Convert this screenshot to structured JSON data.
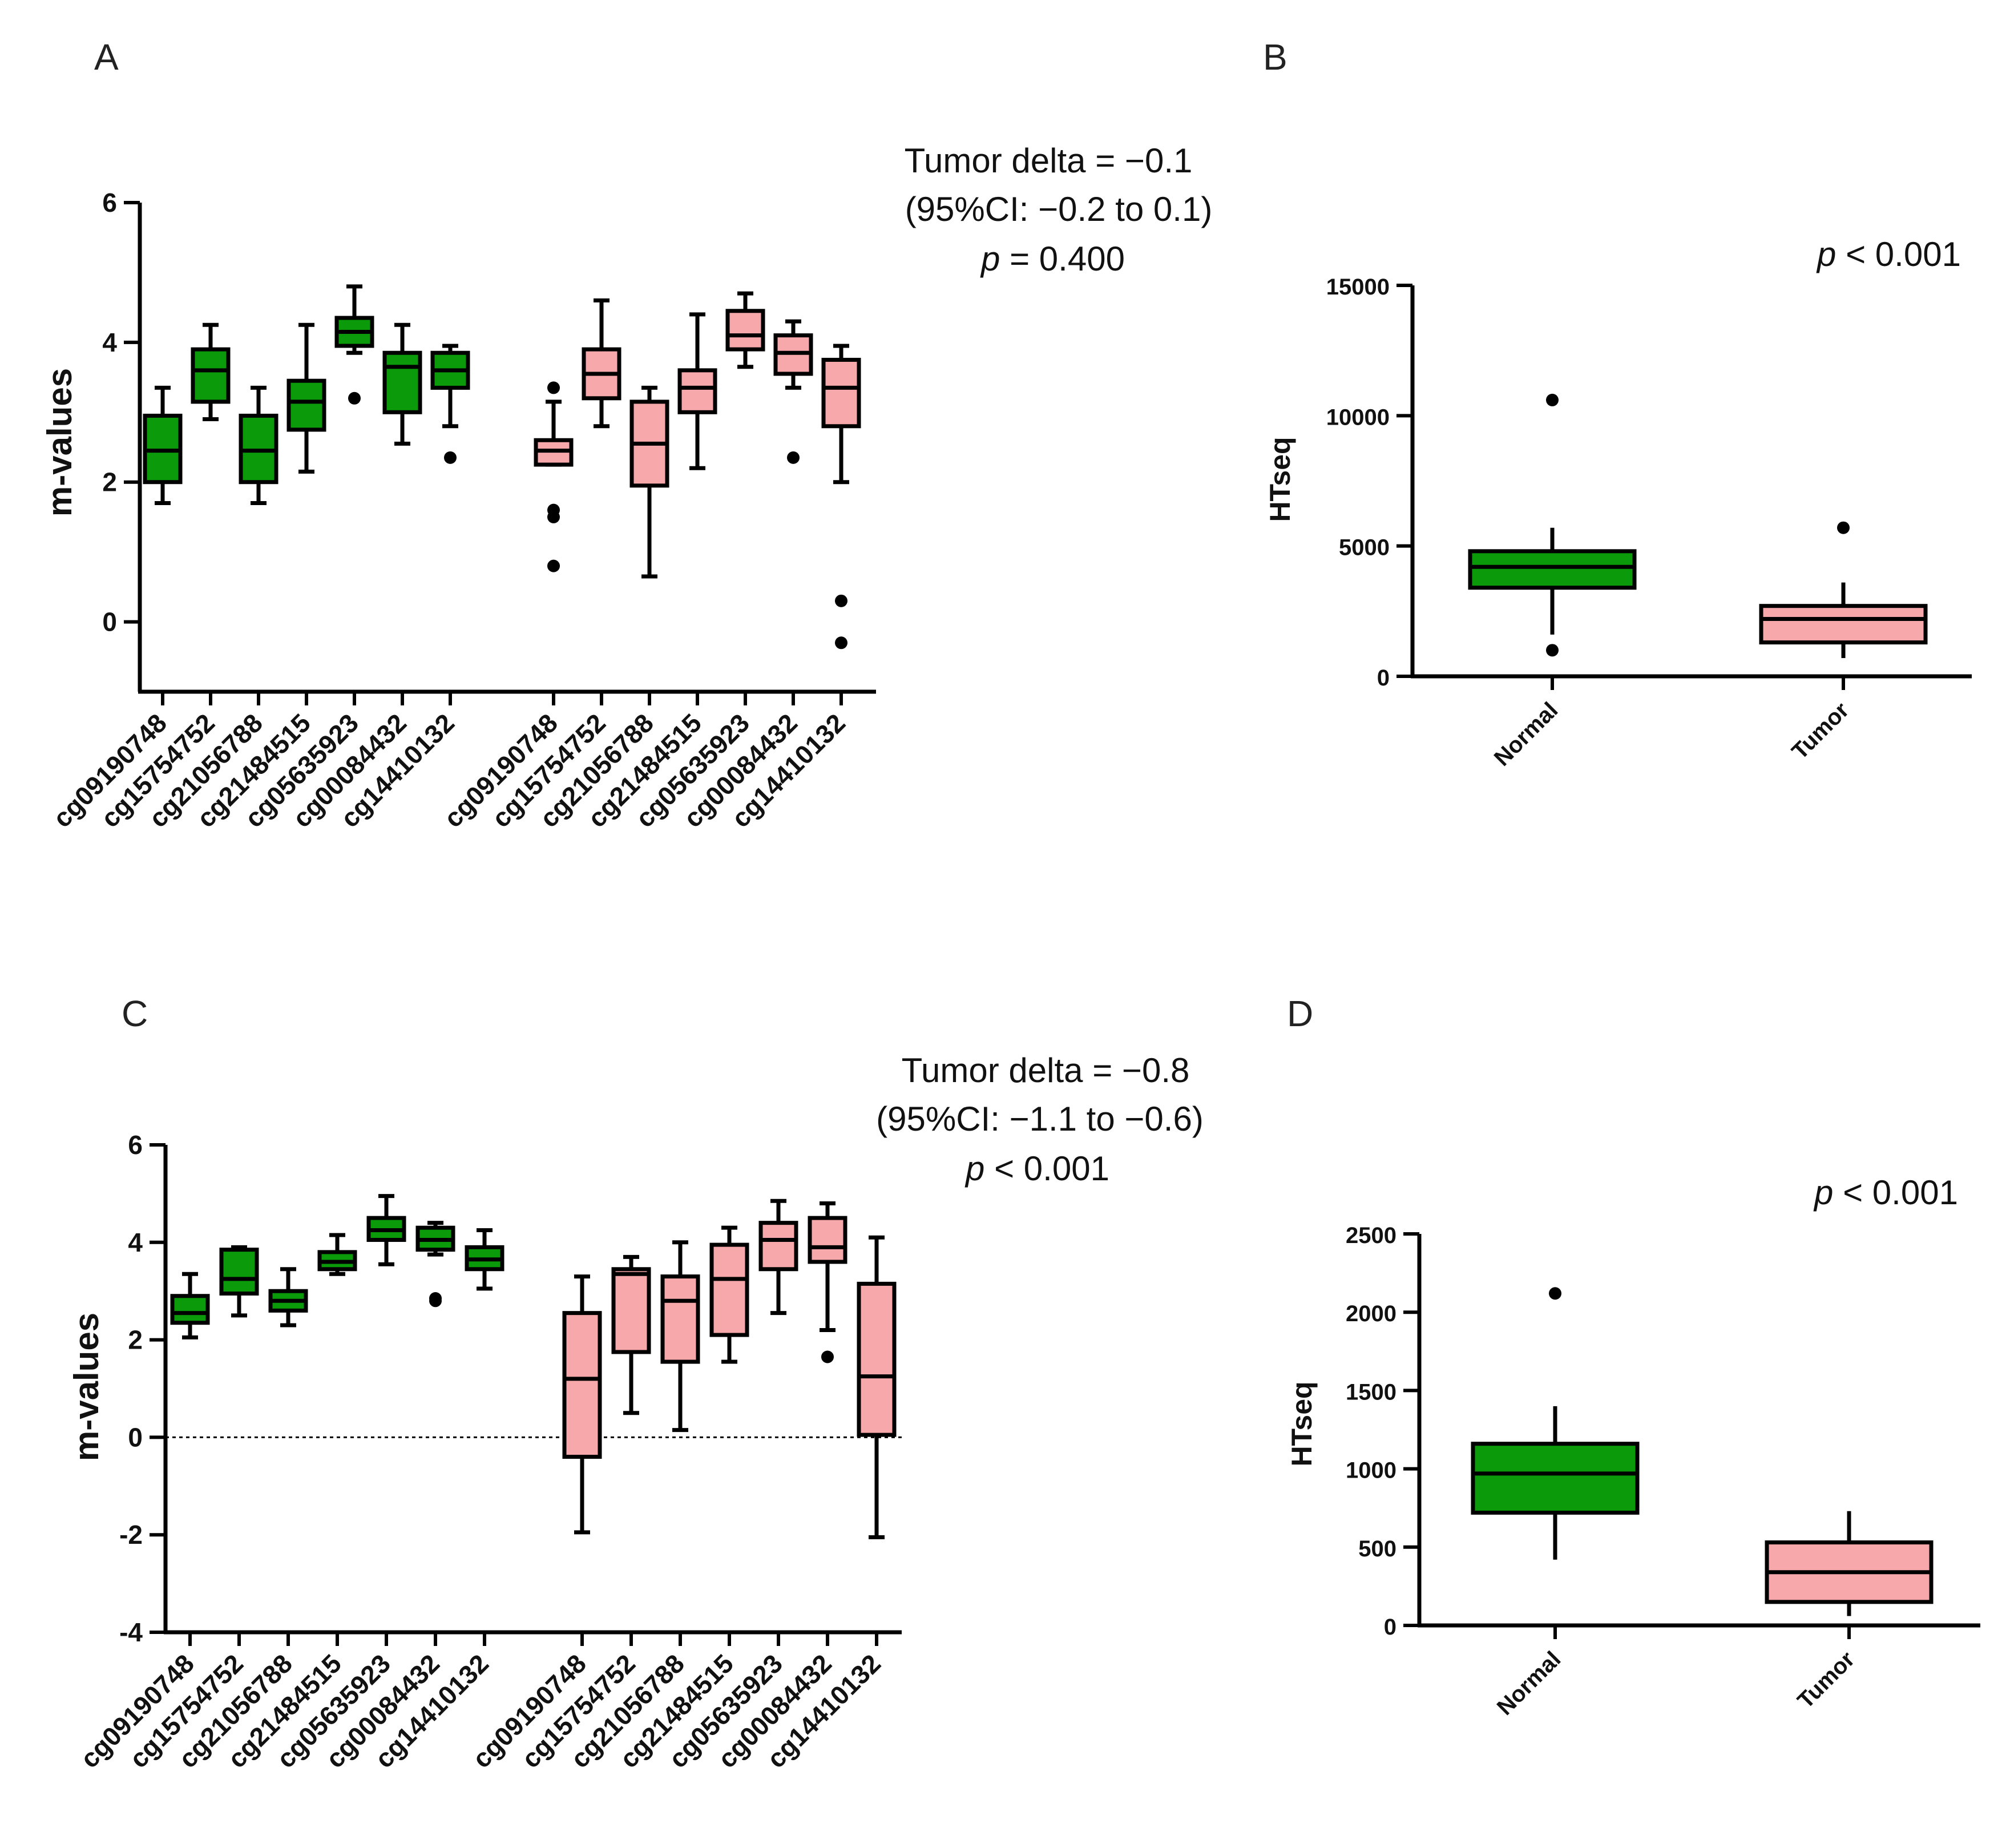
{
  "colors": {
    "normal": "#0a9a0a",
    "tumor": "#f7a8aa",
    "stroke": "#000000"
  },
  "chart_data": [
    {
      "panel": "A",
      "type": "box",
      "ylabel": "m-values",
      "ylim": [
        -1,
        6
      ],
      "yticks": [
        0,
        2,
        4,
        6
      ],
      "zero_line": false,
      "annotation": {
        "line1": "Tumor delta = −0.1",
        "line2": "(95%CI: −0.2 to 0.1)",
        "p_label": "p",
        "p_text": " = 0.400"
      },
      "groups": [
        {
          "name": "Normal",
          "color_key": "normal",
          "boxes": [
            {
              "label": "cg09190748",
              "whisker_low": 1.7,
              "q1": 2.0,
              "median": 2.45,
              "q3": 2.95,
              "whisker_high": 3.35,
              "outliers": []
            },
            {
              "label": "cg15754752",
              "whisker_low": 2.9,
              "q1": 3.15,
              "median": 3.6,
              "q3": 3.9,
              "whisker_high": 4.25,
              "outliers": []
            },
            {
              "label": "cg21056788",
              "whisker_low": 1.7,
              "q1": 2.0,
              "median": 2.45,
              "q3": 2.95,
              "whisker_high": 3.35,
              "outliers": []
            },
            {
              "label": "cg21484515",
              "whisker_low": 2.15,
              "q1": 2.75,
              "median": 3.15,
              "q3": 3.45,
              "whisker_high": 4.25,
              "outliers": []
            },
            {
              "label": "cg05635923",
              "whisker_low": 3.85,
              "q1": 3.95,
              "median": 4.15,
              "q3": 4.35,
              "whisker_high": 4.8,
              "outliers": [
                3.2
              ]
            },
            {
              "label": "cg00084432",
              "whisker_low": 2.55,
              "q1": 3.0,
              "median": 3.65,
              "q3": 3.85,
              "whisker_high": 4.25,
              "outliers": []
            },
            {
              "label": "cg14410132",
              "whisker_low": 2.8,
              "q1": 3.35,
              "median": 3.6,
              "q3": 3.85,
              "whisker_high": 3.95,
              "outliers": [
                2.35
              ]
            }
          ]
        },
        {
          "name": "Tumor",
          "color_key": "tumor",
          "boxes": [
            {
              "label": "cg09190748",
              "whisker_low": 2.25,
              "q1": 2.25,
              "median": 2.45,
              "q3": 2.6,
              "whisker_high": 3.15,
              "outliers": [
                3.35,
                1.6,
                1.5,
                0.8
              ]
            },
            {
              "label": "cg15754752",
              "whisker_low": 2.8,
              "q1": 3.2,
              "median": 3.55,
              "q3": 3.9,
              "whisker_high": 4.6,
              "outliers": []
            },
            {
              "label": "cg21056788",
              "whisker_low": 0.65,
              "q1": 1.95,
              "median": 2.55,
              "q3": 3.15,
              "whisker_high": 3.35,
              "outliers": []
            },
            {
              "label": "cg21484515",
              "whisker_low": 2.2,
              "q1": 3.0,
              "median": 3.35,
              "q3": 3.6,
              "whisker_high": 4.4,
              "outliers": []
            },
            {
              "label": "cg05635923",
              "whisker_low": 3.65,
              "q1": 3.9,
              "median": 4.1,
              "q3": 4.45,
              "whisker_high": 4.7,
              "outliers": []
            },
            {
              "label": "cg00084432",
              "whisker_low": 3.35,
              "q1": 3.55,
              "median": 3.85,
              "q3": 4.1,
              "whisker_high": 4.3,
              "outliers": [
                2.35
              ]
            },
            {
              "label": "cg14410132",
              "whisker_low": 2.0,
              "q1": 2.8,
              "median": 3.35,
              "q3": 3.75,
              "whisker_high": 3.95,
              "outliers": [
                0.3,
                -0.3
              ]
            }
          ]
        }
      ]
    },
    {
      "panel": "B",
      "type": "box",
      "ylabel": "HTseq",
      "ylim": [
        0,
        15000
      ],
      "yticks": [
        0,
        5000,
        10000,
        15000
      ],
      "annotation": {
        "p_label": "p",
        "p_text": " < 0.001"
      },
      "boxes": [
        {
          "label": "Normal",
          "color_key": "normal",
          "whisker_low": 1600,
          "q1": 3400,
          "median": 4200,
          "q3": 4800,
          "whisker_high": 5700,
          "outliers": [
            10600,
            1000
          ]
        },
        {
          "label": "Tumor",
          "color_key": "tumor",
          "whisker_low": 700,
          "q1": 1300,
          "median": 2200,
          "q3": 2700,
          "whisker_high": 3600,
          "outliers": [
            5700
          ]
        }
      ]
    },
    {
      "panel": "C",
      "type": "box",
      "ylabel": "m-values",
      "ylim": [
        -4,
        6
      ],
      "yticks": [
        -4,
        -2,
        0,
        2,
        4,
        6
      ],
      "zero_line": true,
      "annotation": {
        "line1": "Tumor delta = −0.8",
        "line2": "(95%CI: −1.1 to −0.6)",
        "p_label": "p",
        "p_text": " < 0.001"
      },
      "groups": [
        {
          "name": "Normal",
          "color_key": "normal",
          "boxes": [
            {
              "label": "cg09190748",
              "whisker_low": 2.05,
              "q1": 2.35,
              "median": 2.55,
              "q3": 2.9,
              "whisker_high": 3.35,
              "outliers": []
            },
            {
              "label": "cg15754752",
              "whisker_low": 2.5,
              "q1": 2.95,
              "median": 3.25,
              "q3": 3.85,
              "whisker_high": 3.9,
              "outliers": []
            },
            {
              "label": "cg21056788",
              "whisker_low": 2.3,
              "q1": 2.6,
              "median": 2.8,
              "q3": 3.0,
              "whisker_high": 3.45,
              "outliers": []
            },
            {
              "label": "cg21484515",
              "whisker_low": 3.35,
              "q1": 3.45,
              "median": 3.6,
              "q3": 3.8,
              "whisker_high": 4.15,
              "outliers": []
            },
            {
              "label": "cg05635923",
              "whisker_low": 3.55,
              "q1": 4.05,
              "median": 4.25,
              "q3": 4.5,
              "whisker_high": 4.95,
              "outliers": []
            },
            {
              "label": "cg00084432",
              "whisker_low": 3.75,
              "q1": 3.85,
              "median": 4.05,
              "q3": 4.3,
              "whisker_high": 4.4,
              "outliers": [
                2.85,
                2.8
              ]
            },
            {
              "label": "cg14410132",
              "whisker_low": 3.05,
              "q1": 3.45,
              "median": 3.65,
              "q3": 3.9,
              "whisker_high": 4.25,
              "outliers": []
            }
          ]
        },
        {
          "name": "Tumor",
          "color_key": "tumor",
          "boxes": [
            {
              "label": "cg09190748",
              "whisker_low": -1.95,
              "q1": -0.4,
              "median": 1.2,
              "q3": 2.55,
              "whisker_high": 3.3,
              "outliers": []
            },
            {
              "label": "cg15754752",
              "whisker_low": 0.5,
              "q1": 1.75,
              "median": 3.35,
              "q3": 3.45,
              "whisker_high": 3.7,
              "outliers": []
            },
            {
              "label": "cg21056788",
              "whisker_low": 0.15,
              "q1": 1.55,
              "median": 2.8,
              "q3": 3.3,
              "whisker_high": 4.0,
              "outliers": []
            },
            {
              "label": "cg21484515",
              "whisker_low": 1.55,
              "q1": 2.1,
              "median": 3.25,
              "q3": 3.95,
              "whisker_high": 4.3,
              "outliers": []
            },
            {
              "label": "cg05635923",
              "whisker_low": 2.55,
              "q1": 3.45,
              "median": 4.05,
              "q3": 4.4,
              "whisker_high": 4.85,
              "outliers": []
            },
            {
              "label": "cg00084432",
              "whisker_low": 2.2,
              "q1": 3.6,
              "median": 3.9,
              "q3": 4.5,
              "whisker_high": 4.8,
              "outliers": [
                1.65
              ]
            },
            {
              "label": "cg14410132",
              "whisker_low": -2.05,
              "q1": 0.05,
              "median": 1.25,
              "q3": 3.15,
              "whisker_high": 4.1,
              "outliers": []
            }
          ]
        }
      ]
    },
    {
      "panel": "D",
      "type": "box",
      "ylabel": "HTseq",
      "ylim": [
        0,
        2500
      ],
      "yticks": [
        0,
        500,
        1000,
        1500,
        2000,
        2500
      ],
      "annotation": {
        "p_label": "p",
        "p_text": " < 0.001"
      },
      "boxes": [
        {
          "label": "Normal",
          "color_key": "normal",
          "whisker_low": 420,
          "q1": 720,
          "median": 970,
          "q3": 1160,
          "whisker_high": 1400,
          "outliers": [
            2120
          ]
        },
        {
          "label": "Tumor",
          "color_key": "tumor",
          "whisker_low": 60,
          "q1": 150,
          "median": 340,
          "q3": 530,
          "whisker_high": 730,
          "outliers": []
        }
      ]
    }
  ]
}
